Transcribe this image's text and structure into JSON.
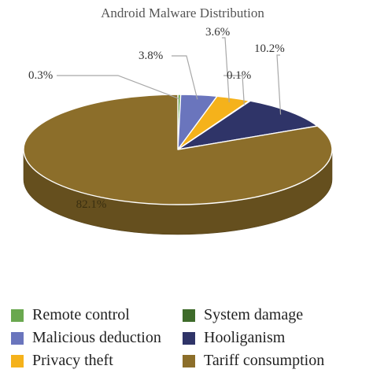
{
  "chart_data": {
    "type": "pie",
    "title": "Android Malware Distribution",
    "categories": [
      "Remote control",
      "Malicious deduction",
      "Privacy theft",
      "System damage",
      "Hooliganism",
      "Tariff consumption"
    ],
    "values": [
      0.3,
      3.8,
      3.6,
      0.1,
      10.2,
      82.1
    ],
    "value_labels": [
      "0.3%",
      "3.8%",
      "3.6%",
      "0.1%",
      "10.2%",
      "82.1%"
    ],
    "colors": [
      "#6aa84f",
      "#6a75bd",
      "#f5b21b",
      "#3e6b2a",
      "#2f3468",
      "#8c6e2a"
    ],
    "legend_position": "bottom",
    "style": "3d"
  },
  "legend": {
    "items": [
      {
        "label": "Remote control",
        "color": "#6aa84f"
      },
      {
        "label": "System damage",
        "color": "#3e6b2a"
      },
      {
        "label": "Malicious deduction",
        "color": "#6a75bd"
      },
      {
        "label": "Hooliganism",
        "color": "#2f3468"
      },
      {
        "label": "Privacy theft",
        "color": "#f5b21b"
      },
      {
        "label": "Tariff consumption",
        "color": "#8c6e2a"
      }
    ]
  }
}
